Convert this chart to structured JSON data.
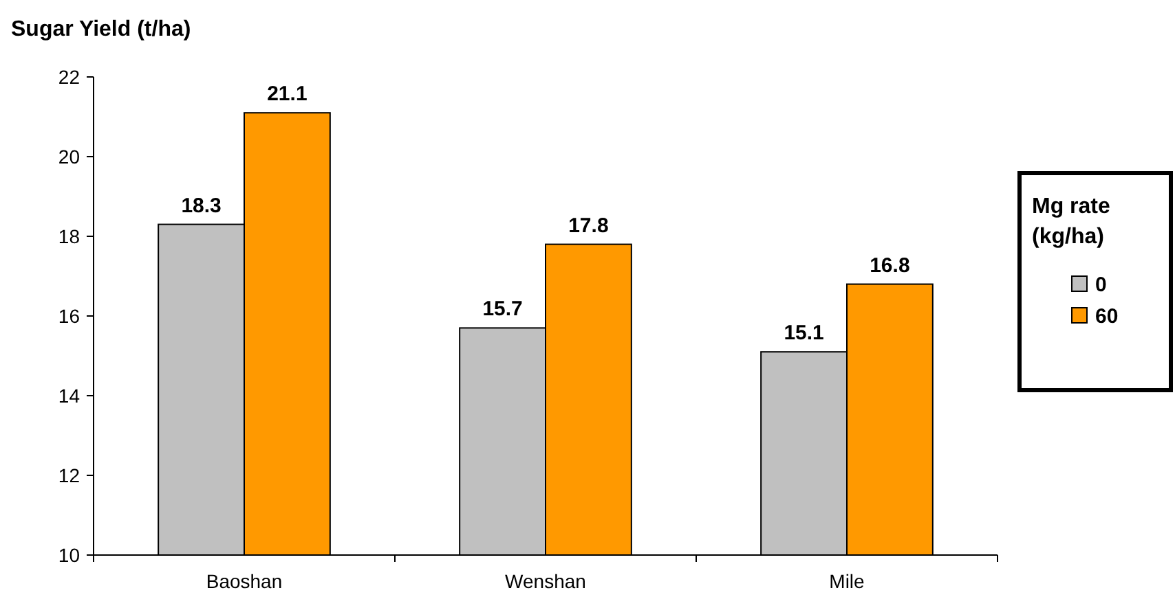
{
  "chart_data": {
    "type": "bar",
    "ylabel": "Sugar Yield (t/ha)",
    "legend_title": "Mg rate (kg/ha)",
    "categories": [
      "Baoshan",
      "Wenshan",
      "Mile"
    ],
    "series": [
      {
        "name": "0",
        "color": "#c0c0c0",
        "values": [
          18.3,
          15.7,
          15.1
        ]
      },
      {
        "name": "60",
        "color": "#ff9900",
        "values": [
          21.1,
          17.8,
          16.8
        ]
      }
    ],
    "ylim": [
      10,
      22
    ],
    "yticks": [
      10,
      12,
      14,
      16,
      18,
      20,
      22
    ],
    "data_labels": true,
    "legend": "right"
  }
}
